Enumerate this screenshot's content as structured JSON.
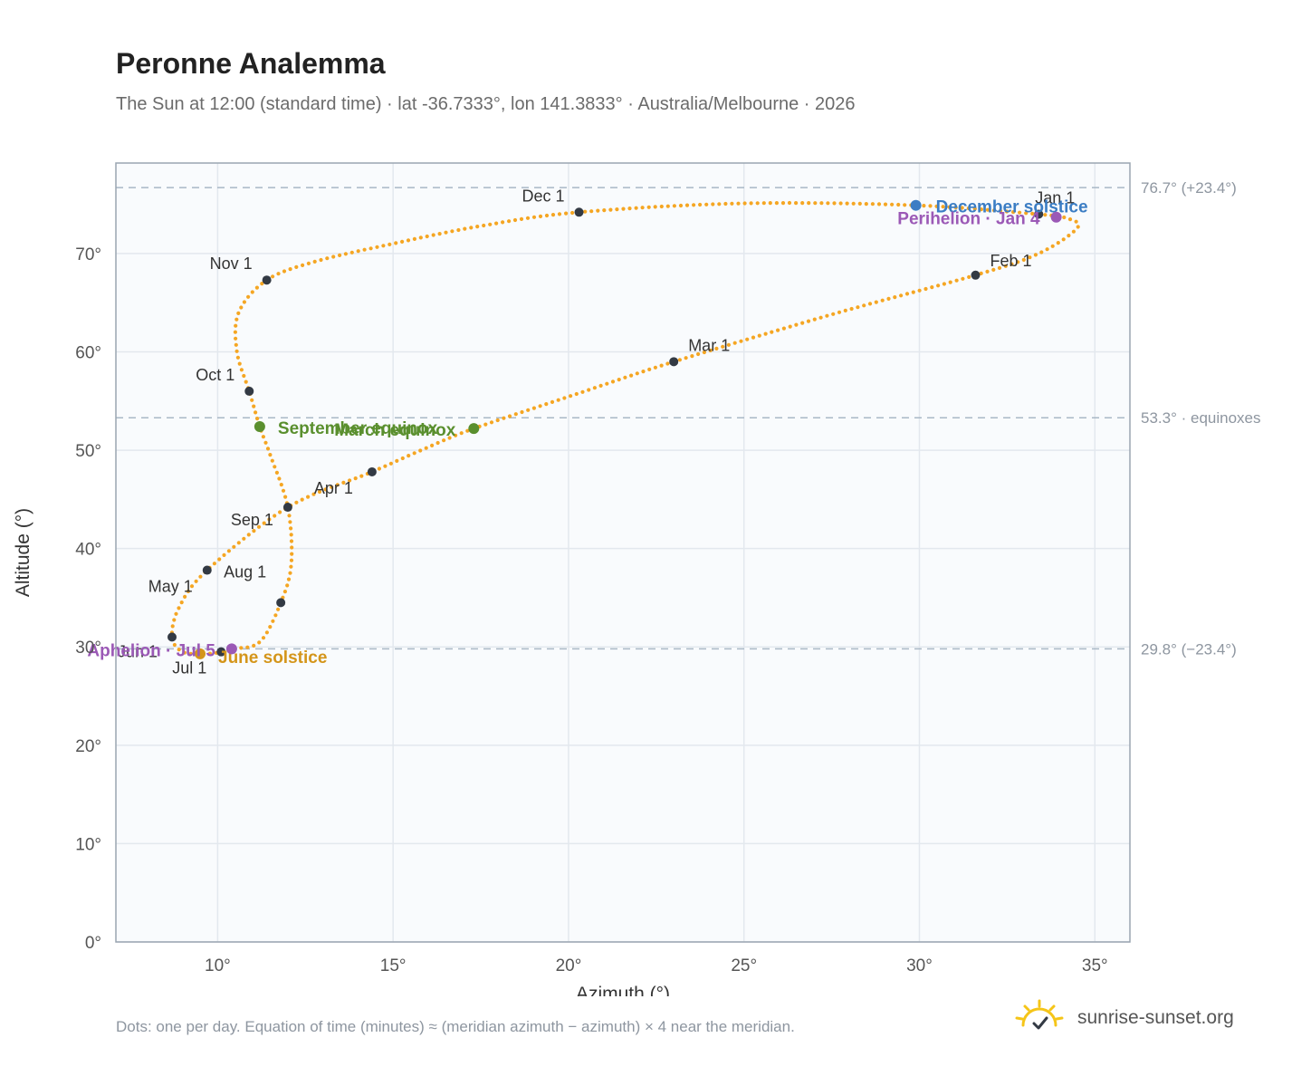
{
  "header": {
    "title": "Peronne Analemma",
    "subtitle": "The Sun at 12:00 (standard time) · lat -36.7333°, lon 141.3833° · Australia/Melbourne · 2026"
  },
  "footer": {
    "footnote": "Dots: one per day. Equation of time (minutes) ≈ (meridian azimuth − azimuth) × 4 near the meridian.",
    "brand": "sunrise-sunset.org"
  },
  "colors": {
    "analemma": "#f5a623",
    "month_marker": "#333a44",
    "december_solstice": "#3b7dc4",
    "june_solstice": "#d4951a",
    "equinox": "#5a8f2e",
    "aphelion_perihelion": "#9b59b6",
    "reference_line": "#a9b8c6",
    "plot_background": "#f9fbfd",
    "grid": "#e3e8ee",
    "brand_sun": "#f5c518"
  },
  "icons": {
    "brand_logo": "sunrise-sun-icon"
  },
  "chart_data": {
    "type": "scatter",
    "title": "Peronne Analemma",
    "xlabel": "Azimuth (°)",
    "ylabel": "Altitude (°)",
    "xlim": [
      7.1,
      36.0
    ],
    "ylim": [
      0,
      79.2
    ],
    "xticks": [
      10,
      15,
      20,
      25,
      30,
      35
    ],
    "yticks": [
      0,
      10,
      20,
      30,
      40,
      50,
      60,
      70
    ],
    "x_tick_labels": [
      "10°",
      "15°",
      "20°",
      "25°",
      "30°",
      "35°"
    ],
    "y_tick_labels": [
      "0°",
      "10°",
      "20°",
      "30°",
      "40°",
      "50°",
      "60°",
      "70°"
    ],
    "grid": true,
    "reference_lines": [
      {
        "y": 76.7,
        "label": "76.7° (+23.4°)"
      },
      {
        "y": 53.3,
        "label": "53.3° · equinoxes"
      },
      {
        "y": 29.8,
        "label": "29.8° (−23.4°)"
      }
    ],
    "analemma_path": [
      [
        33.4,
        74.0
      ],
      [
        34.2,
        73.6
      ],
      [
        34.5,
        72.6
      ],
      [
        33.4,
        70.0
      ],
      [
        31.6,
        67.8
      ],
      [
        27.5,
        63.8
      ],
      [
        23.0,
        59.0
      ],
      [
        20.3,
        55.8
      ],
      [
        17.3,
        52.2
      ],
      [
        15.8,
        50.0
      ],
      [
        14.4,
        47.8
      ],
      [
        12.0,
        44.2
      ],
      [
        9.7,
        37.8
      ],
      [
        8.9,
        34.0
      ],
      [
        8.7,
        31.0
      ],
      [
        9.0,
        29.5
      ],
      [
        9.6,
        29.3
      ],
      [
        10.2,
        29.5
      ],
      [
        10.4,
        29.8
      ],
      [
        11.2,
        30.5
      ],
      [
        11.8,
        34.5
      ],
      [
        12.1,
        38.5
      ],
      [
        12.0,
        44.2
      ],
      [
        11.5,
        49.5
      ],
      [
        11.2,
        52.4
      ],
      [
        10.9,
        56.0
      ],
      [
        10.55,
        60.0
      ],
      [
        10.6,
        64.0
      ],
      [
        11.4,
        67.3
      ],
      [
        12.8,
        69.2
      ],
      [
        15.0,
        71.0
      ],
      [
        17.5,
        72.8
      ],
      [
        20.3,
        74.2
      ],
      [
        25.0,
        75.1
      ],
      [
        29.9,
        74.9
      ],
      [
        33.4,
        74.0
      ]
    ],
    "month_markers": [
      {
        "label": "Jan 1",
        "x": 33.4,
        "y": 74.0
      },
      {
        "label": "Feb 1",
        "x": 31.6,
        "y": 67.8
      },
      {
        "label": "Mar 1",
        "x": 23.0,
        "y": 59.0
      },
      {
        "label": "Apr 1",
        "x": 14.4,
        "y": 47.8
      },
      {
        "label": "May 1",
        "x": 9.7,
        "y": 37.8
      },
      {
        "label": "Jun 1",
        "x": 8.7,
        "y": 31.0
      },
      {
        "label": "Jul 1",
        "x": 10.1,
        "y": 29.5
      },
      {
        "label": "Aug 1",
        "x": 11.8,
        "y": 34.5
      },
      {
        "label": "Sep 1",
        "x": 12.0,
        "y": 44.2
      },
      {
        "label": "Oct 1",
        "x": 10.9,
        "y": 56.0
      },
      {
        "label": "Nov 1",
        "x": 11.4,
        "y": 67.3
      },
      {
        "label": "Dec 1",
        "x": 20.3,
        "y": 74.2
      }
    ],
    "events": [
      {
        "label": "December solstice",
        "x": 29.9,
        "y": 74.9,
        "kind": "december_solstice"
      },
      {
        "label": "Perihelion · Jan 4",
        "x": 33.9,
        "y": 73.7,
        "kind": "aphelion_perihelion"
      },
      {
        "label": "March equinox",
        "x": 17.3,
        "y": 52.2,
        "kind": "equinox"
      },
      {
        "label": "September equinox",
        "x": 11.2,
        "y": 52.4,
        "kind": "equinox"
      },
      {
        "label": "June solstice",
        "x": 9.5,
        "y": 29.3,
        "kind": "june_solstice"
      },
      {
        "label": "Aphelion · Jul 5",
        "x": 10.4,
        "y": 29.8,
        "kind": "aphelion_perihelion"
      }
    ]
  }
}
